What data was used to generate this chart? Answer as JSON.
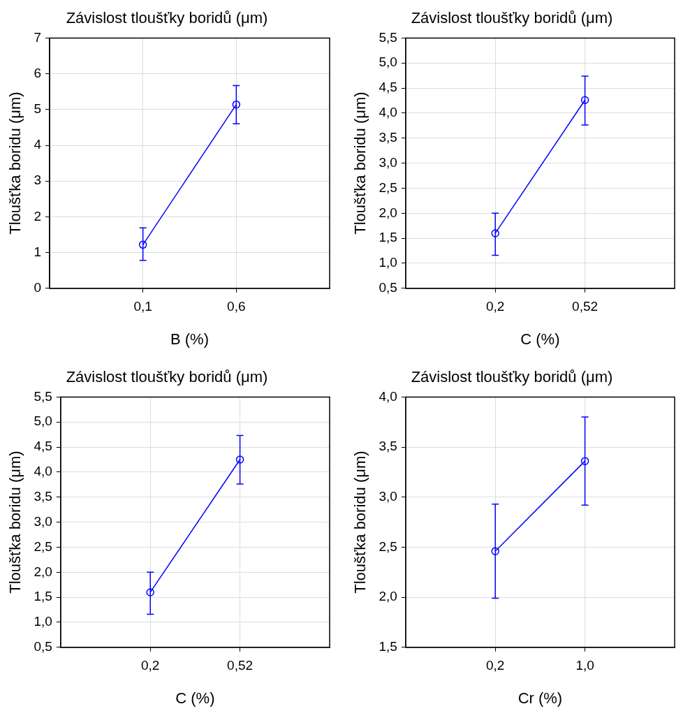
{
  "chart_data": [
    {
      "type": "line",
      "title": "Závislost tloušťky boridů (μm)",
      "xlabel": "B (%)",
      "ylabel": "Tloušťka boridu (μm)",
      "categories": [
        "0,1",
        "0,6"
      ],
      "series": [
        {
          "color": "#0000ff",
          "values": [
            1.22,
            5.14
          ],
          "errors": [
            [
              0.78,
              1.69
            ],
            [
              4.6,
              5.67
            ]
          ]
        }
      ],
      "ylim": [
        0,
        7
      ],
      "yticks": [
        0,
        1,
        2,
        3,
        4,
        5,
        6,
        7
      ],
      "grid": true,
      "legend": false,
      "marker": "circle",
      "line_style": "solid"
    },
    {
      "type": "line",
      "title": "Závislost tloušťky boridů (μm)",
      "xlabel": "C (%)",
      "ylabel": "Tloušťka boridu (μm)",
      "categories": [
        "0,2",
        "0,52"
      ],
      "series": [
        {
          "color": "#0000ff",
          "values": [
            1.6,
            4.26
          ],
          "errors": [
            [
              1.16,
              2.0
            ],
            [
              3.76,
              4.74
            ]
          ]
        }
      ],
      "ylim": [
        0.5,
        5.5
      ],
      "yticks": [
        {
          "value": 0.5,
          "label": "0,5"
        },
        {
          "value": 1,
          "label": "1,0"
        },
        {
          "value": 1.5,
          "label": "1,5"
        },
        {
          "value": 2,
          "label": "2,0"
        },
        {
          "value": 2.5,
          "label": "2,5"
        },
        {
          "value": 3,
          "label": "3,0"
        },
        {
          "value": 3.5,
          "label": "3,5"
        },
        {
          "value": 4,
          "label": "4,0"
        },
        {
          "value": 4.5,
          "label": "4,5"
        },
        {
          "value": 5,
          "label": "5,0"
        },
        {
          "value": 5.5,
          "label": "5,5"
        }
      ],
      "grid": true,
      "legend": false,
      "marker": "circle",
      "line_style": "solid"
    },
    {
      "type": "line",
      "title": "Závislost tloušťky boridů (μm)",
      "xlabel": "C (%)",
      "ylabel": "Tloušťka boridu (μm)",
      "categories": [
        "0,2",
        "0,52"
      ],
      "series": [
        {
          "color": "#0000ff",
          "values": [
            1.6,
            4.25
          ],
          "errors": [
            [
              1.16,
              2.0
            ],
            [
              3.76,
              4.73
            ]
          ]
        }
      ],
      "ylim": [
        0.5,
        5.5
      ],
      "yticks": [
        {
          "value": 0.5,
          "label": "0,5"
        },
        {
          "value": 1,
          "label": "1,0"
        },
        {
          "value": 1.5,
          "label": "1,5"
        },
        {
          "value": 2,
          "label": "2,0"
        },
        {
          "value": 2.5,
          "label": "2,5"
        },
        {
          "value": 3,
          "label": "3,0"
        },
        {
          "value": 3.5,
          "label": "3,5"
        },
        {
          "value": 4,
          "label": "4,0"
        },
        {
          "value": 4.5,
          "label": "4,5"
        },
        {
          "value": 5,
          "label": "5,0"
        },
        {
          "value": 5.5,
          "label": "5,5"
        }
      ],
      "grid": true,
      "legend": false,
      "marker": "circle",
      "line_style": "solid"
    },
    {
      "type": "line",
      "title": "Závislost tloušťky boridů (μm)",
      "xlabel": "Cr (%)",
      "ylabel": "Tloušťka boridu (μm)",
      "categories": [
        "0,2",
        "1,0"
      ],
      "series": [
        {
          "color": "#0000ff",
          "values": [
            2.46,
            3.36
          ],
          "errors": [
            [
              1.99,
              2.93
            ],
            [
              2.92,
              3.8
            ]
          ]
        }
      ],
      "ylim": [
        1.5,
        4
      ],
      "yticks": [
        {
          "value": 1.5,
          "label": "1,5"
        },
        {
          "value": 2,
          "label": "2,0"
        },
        {
          "value": 2.5,
          "label": "2,5"
        },
        {
          "value": 3,
          "label": "3,0"
        },
        {
          "value": 3.5,
          "label": "3,5"
        },
        {
          "value": 4,
          "label": "4,0"
        }
      ],
      "grid": true,
      "legend": false,
      "marker": "circle",
      "line_style": "solid"
    }
  ]
}
